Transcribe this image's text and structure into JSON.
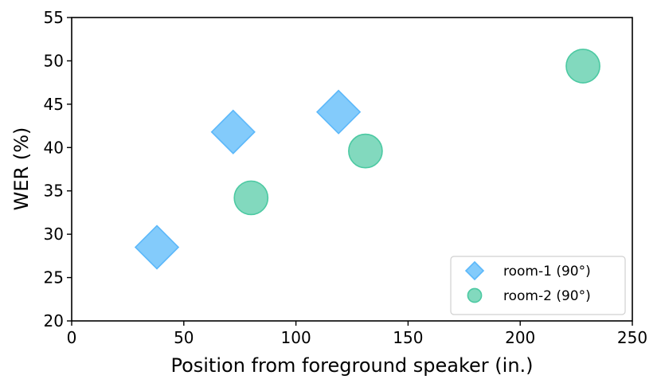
{
  "chart_data": {
    "type": "scatter",
    "title": "",
    "xlabel": "Position from foreground speaker (in.)",
    "ylabel": "WER (%)",
    "xlim": [
      0,
      250
    ],
    "ylim": [
      20,
      55
    ],
    "xticks": [
      0,
      50,
      100,
      150,
      200,
      250
    ],
    "yticks": [
      20,
      25,
      30,
      35,
      40,
      45,
      50,
      55
    ],
    "xtick_labels": [
      "0",
      "50",
      "100",
      "150",
      "200",
      "250"
    ],
    "ytick_labels": [
      "20",
      "25",
      "30",
      "35",
      "40",
      "45",
      "50",
      "55"
    ],
    "grid": false,
    "legend_position": "lower-right",
    "series": [
      {
        "name": "room-1 (90$^\\circ$)",
        "legend_text": "room-1 (90°)",
        "marker": "diamond",
        "color": "#5CB8FA",
        "fill_color": "#83CBFB",
        "points": [
          {
            "x": 38,
            "y": 28.5
          },
          {
            "x": 72,
            "y": 41.8
          },
          {
            "x": 119,
            "y": 44.1
          }
        ]
      },
      {
        "name": "room-2 (90$^\\circ$)",
        "legend_text": "room-2 (90°)",
        "marker": "circle",
        "color": "#4CC9A2",
        "fill_color": "#82D9BE",
        "points": [
          {
            "x": 80,
            "y": 34.2
          },
          {
            "x": 131,
            "y": 39.6
          },
          {
            "x": 228,
            "y": 49.4
          }
        ]
      }
    ]
  }
}
